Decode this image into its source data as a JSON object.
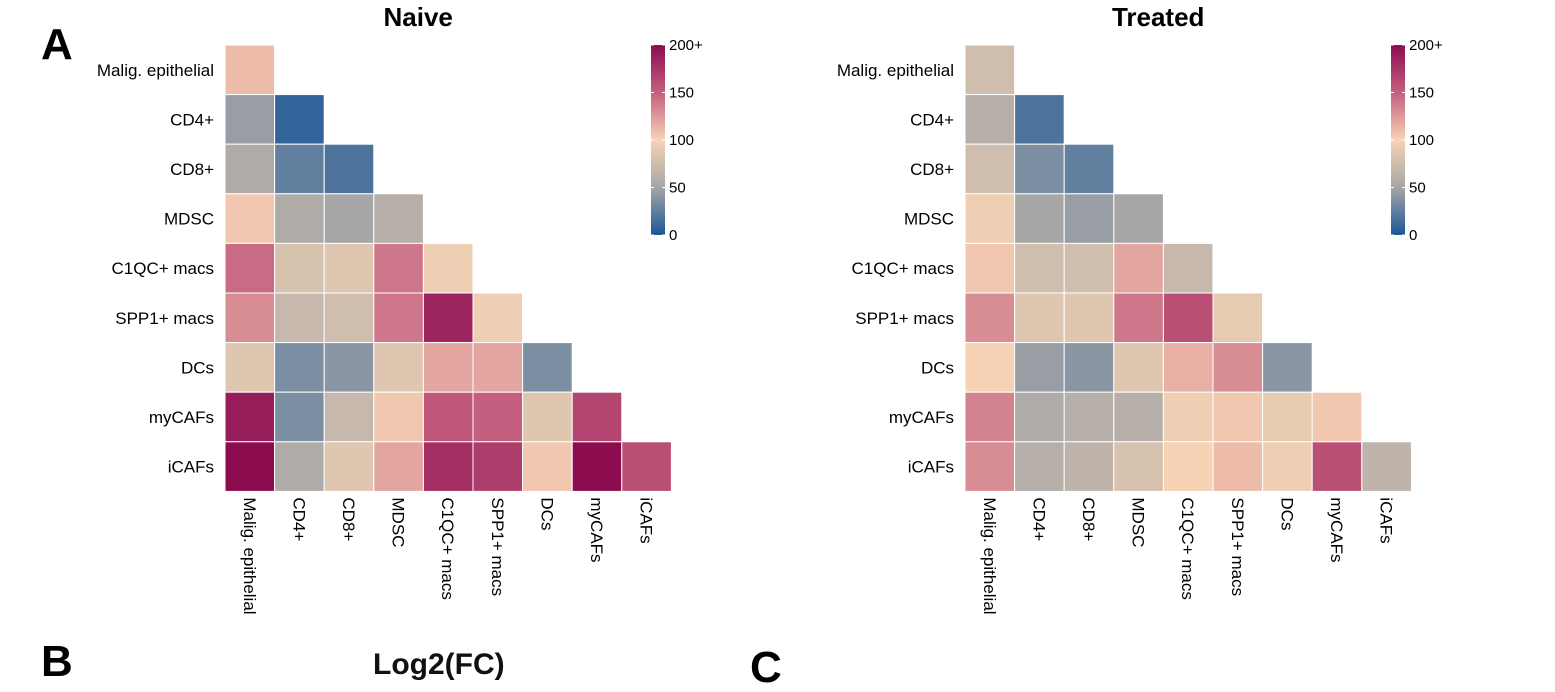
{
  "panels": {
    "a_letter": "A",
    "b_letter": "B",
    "c_letter": "C",
    "b_partial_title": "Log2(FC)"
  },
  "chart_data": [
    {
      "type": "heatmap",
      "title": "Naive",
      "categories": [
        "Malig. epithelial",
        "CD4+",
        "CD8+",
        "MDSC",
        "C1QC+ macs",
        "SPP1+ macs",
        "DCs",
        "myCAFs",
        "iCAFs"
      ],
      "values": [
        [
          110
        ],
        [
          45,
          8
        ],
        [
          55,
          25,
          18
        ],
        [
          105,
          55,
          50,
          60
        ],
        [
          145,
          80,
          85,
          140,
          95
        ],
        [
          130,
          70,
          75,
          140,
          185,
          95
        ],
        [
          85,
          35,
          40,
          85,
          120,
          120,
          35
        ],
        [
          190,
          35,
          70,
          105,
          155,
          150,
          85,
          165
        ],
        [
          220,
          55,
          85,
          120,
          180,
          170,
          105,
          220,
          160
        ]
      ],
      "colorbar": {
        "ticks": [
          "0",
          "50",
          "100",
          "150",
          "200+"
        ],
        "min": 0,
        "max": 200,
        "colors": [
          "#1b5796",
          "#a6a6a6",
          "#f7d3b5",
          "#c45f7f",
          "#8b0d4f"
        ]
      },
      "grid": false,
      "legend": "right"
    },
    {
      "type": "heatmap",
      "title": "Treated",
      "categories": [
        "Malig. epithelial",
        "CD4+",
        "CD8+",
        "MDSC",
        "C1QC+ macs",
        "SPP1+ macs",
        "DCs",
        "myCAFs",
        "iCAFs"
      ],
      "values": [
        [
          75
        ],
        [
          60,
          18
        ],
        [
          75,
          35,
          25
        ],
        [
          95,
          50,
          45,
          50
        ],
        [
          105,
          75,
          75,
          120,
          70
        ],
        [
          130,
          85,
          85,
          140,
          160,
          90
        ],
        [
          100,
          45,
          40,
          85,
          115,
          130,
          40
        ],
        [
          135,
          55,
          60,
          60,
          95,
          105,
          90,
          105
        ],
        [
          130,
          60,
          65,
          80,
          100,
          110,
          95,
          160,
          65
        ]
      ],
      "colorbar": {
        "ticks": [
          "0",
          "50",
          "100",
          "150",
          "200+"
        ],
        "min": 0,
        "max": 200,
        "colors": [
          "#1b5796",
          "#a6a6a6",
          "#f7d3b5",
          "#c45f7f",
          "#8b0d4f"
        ]
      },
      "grid": false,
      "legend": "right"
    }
  ]
}
